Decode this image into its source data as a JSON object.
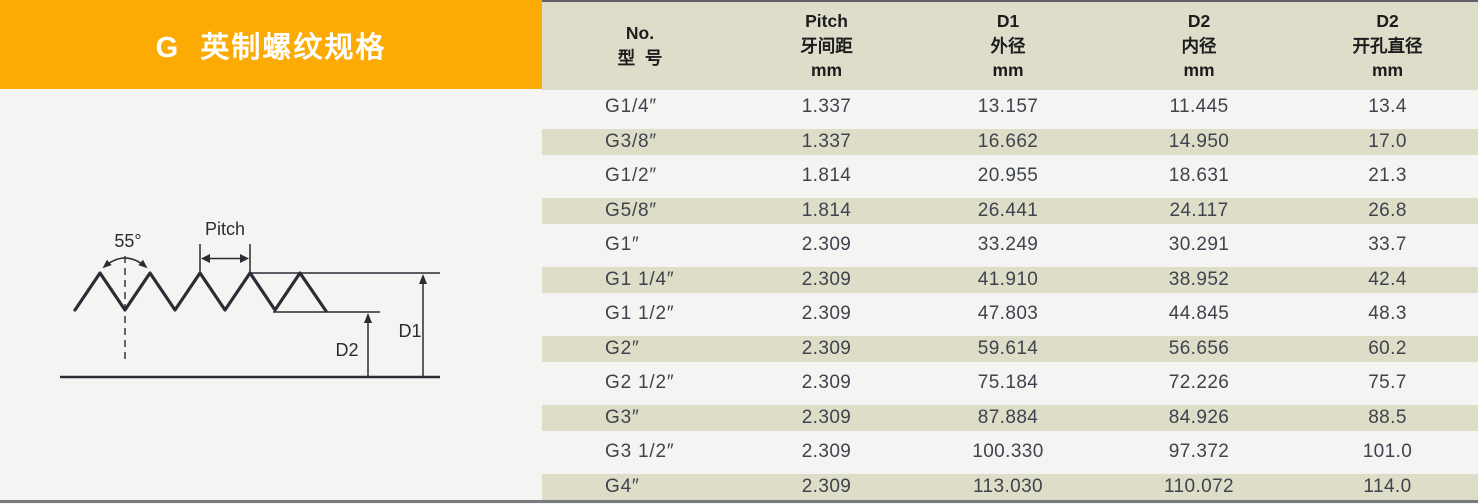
{
  "banner": {
    "title": "G  英制螺纹规格"
  },
  "diagram": {
    "angle_label": "55°",
    "pitch_label": "Pitch",
    "d1_label": "D1",
    "d2_label": "D2"
  },
  "table": {
    "header": {
      "no": {
        "l1": "No.",
        "l2": "型  号"
      },
      "pitch": {
        "l1": "Pitch",
        "l2": "牙间距",
        "l3": "mm"
      },
      "d1": {
        "l1": "D1",
        "l2": "外径",
        "l3": "mm"
      },
      "d2": {
        "l1": "D2",
        "l2": "内径",
        "l3": "mm"
      },
      "d2_hole": {
        "l1": "D2",
        "l2": "开孔直径",
        "l3": "mm"
      }
    },
    "rows": [
      {
        "no": "G1/4″",
        "pitch": "1.337",
        "d1": "13.157",
        "d2": "11.445",
        "hole": "13.4"
      },
      {
        "no": "G3/8″",
        "pitch": "1.337",
        "d1": "16.662",
        "d2": "14.950",
        "hole": "17.0"
      },
      {
        "no": "G1/2″",
        "pitch": "1.814",
        "d1": "20.955",
        "d2": "18.631",
        "hole": "21.3"
      },
      {
        "no": "G5/8″",
        "pitch": "1.814",
        "d1": "26.441",
        "d2": "24.117",
        "hole": "26.8"
      },
      {
        "no": "G1″",
        "pitch": "2.309",
        "d1": "33.249",
        "d2": "30.291",
        "hole": "33.7"
      },
      {
        "no": "G1 1/4″",
        "pitch": "2.309",
        "d1": "41.910",
        "d2": "38.952",
        "hole": "42.4"
      },
      {
        "no": "G1 1/2″",
        "pitch": "2.309",
        "d1": "47.803",
        "d2": "44.845",
        "hole": "48.3"
      },
      {
        "no": "G2″",
        "pitch": "2.309",
        "d1": "59.614",
        "d2": "56.656",
        "hole": "60.2"
      },
      {
        "no": "G2 1/2″",
        "pitch": "2.309",
        "d1": "75.184",
        "d2": "72.226",
        "hole": "75.7"
      },
      {
        "no": "G3″",
        "pitch": "2.309",
        "d1": "87.884",
        "d2": "84.926",
        "hole": "88.5"
      },
      {
        "no": "G3 1/2″",
        "pitch": "2.309",
        "d1": "100.330",
        "d2": "97.372",
        "hole": "101.0"
      },
      {
        "no": "G4″",
        "pitch": "2.309",
        "d1": "113.030",
        "d2": "110.072",
        "hole": "114.0"
      }
    ]
  },
  "colors": {
    "orange": "#FBAB03",
    "page": "#F4F4F2",
    "headbg": "#DEDDC9",
    "stripe": "#DEDDC8",
    "headtext": "#1C1C1E",
    "rowtext": "#3F434E",
    "line": "#2B2C34",
    "ruletop": "#5F6063",
    "rulebottom": "#7A7B7E"
  }
}
